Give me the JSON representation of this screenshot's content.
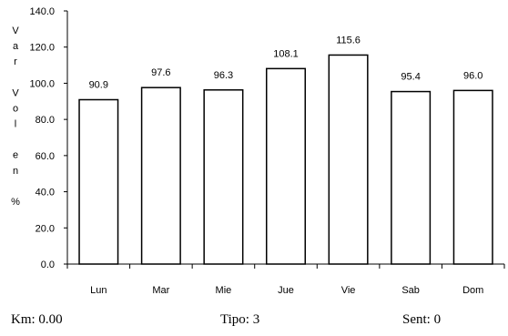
{
  "chart_data": {
    "type": "bar",
    "categories": [
      "Lun",
      "Mar",
      "Mie",
      "Jue",
      "Vie",
      "Sab",
      "Dom"
    ],
    "values": [
      90.9,
      97.6,
      96.3,
      108.1,
      115.6,
      95.4,
      96.0
    ],
    "value_labels": [
      "90.9",
      "97.6",
      "96.3",
      "108.1",
      "115.6",
      "95.4",
      "96.0"
    ],
    "ylabel": "Var Vol en %",
    "ylim": [
      0,
      140
    ],
    "yticks": [
      "0.0",
      "20.0",
      "40.0",
      "60.0",
      "80.0",
      "100.0",
      "120.0",
      "140.0"
    ],
    "grid": false,
    "bar_fill": "#ffffff",
    "bar_stroke": "#000000"
  },
  "footer": {
    "km": "Km: 0.00",
    "tipo": "Tipo: 3",
    "sent": "Sent: 0"
  }
}
